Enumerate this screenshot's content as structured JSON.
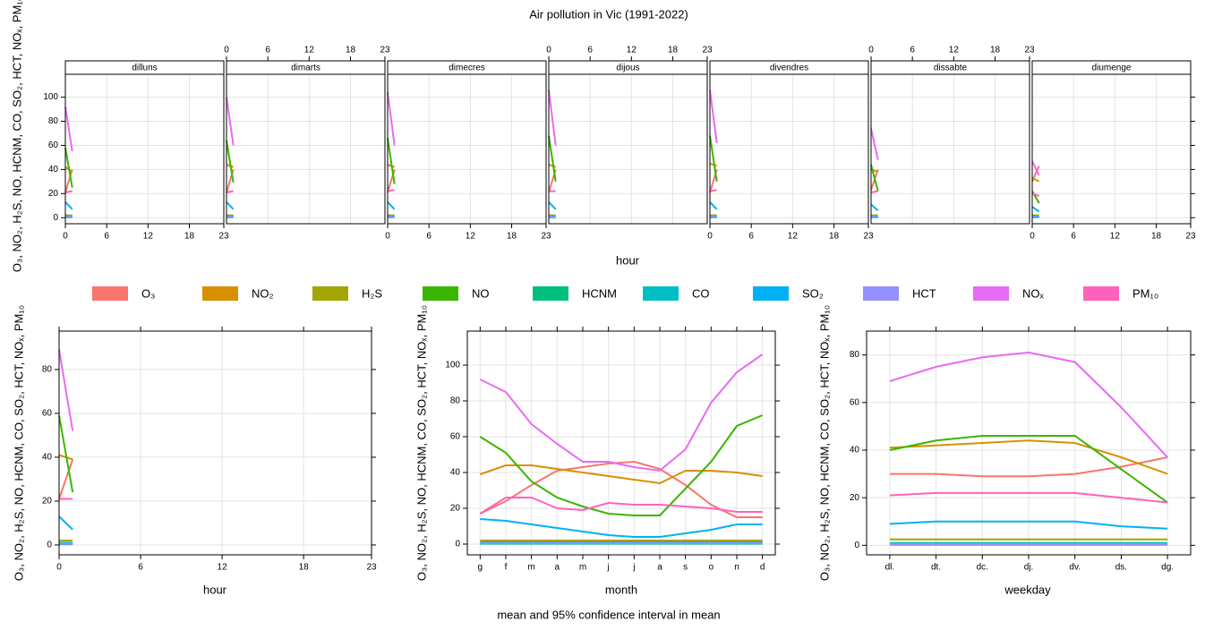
{
  "title": "Air pollution in Vic (1991-2022)",
  "ylabel": "O₃, NO₂, H₂S, NO, HCNM, CO, SO₂, HCT, NOₓ, PM₁₀",
  "footnote": "mean and 95% confidence interval in mean",
  "legend": [
    {
      "name": "O₃",
      "color": "#F8766D"
    },
    {
      "name": "NO₂",
      "color": "#D89000"
    },
    {
      "name": "H₂S",
      "color": "#A3A500"
    },
    {
      "name": "NO",
      "color": "#39B600"
    },
    {
      "name": "HCNM",
      "color": "#00BF7D"
    },
    {
      "name": "CO",
      "color": "#00BFC4"
    },
    {
      "name": "SO₂",
      "color": "#00B0F6"
    },
    {
      "name": "HCT",
      "color": "#9590FF"
    },
    {
      "name": "NOₓ",
      "color": "#E76BF3"
    },
    {
      "name": "PM₁₀",
      "color": "#FF62BC"
    }
  ],
  "chart_data": [
    {
      "type": "line",
      "xlabel": "hour",
      "x": [
        0,
        1
      ],
      "xlim": [
        0,
        23
      ],
      "xticks": [
        0,
        6,
        12,
        18,
        23
      ],
      "ylim": [
        -5,
        119
      ],
      "yticks": [
        0,
        20,
        40,
        60,
        80,
        100
      ],
      "grid": true,
      "facets": [
        {
          "title": "dilluns",
          "series": [
            {
              "values": [
                21,
                40
              ]
            },
            {
              "values": [
                42,
                38
              ]
            },
            {
              "values": [
                2,
                2
              ]
            },
            {
              "values": [
                58,
                25
              ]
            },
            {
              "values": [
                0.3,
                0.3
              ]
            },
            {
              "values": [
                1,
                1
              ]
            },
            {
              "values": [
                13,
                7
              ]
            },
            {
              "values": [
                0.5,
                0.5
              ]
            },
            {
              "values": [
                92,
                55
              ]
            },
            {
              "values": [
                21,
                22
              ]
            }
          ]
        },
        {
          "title": "dimarts",
          "series": [
            {
              "values": [
                21,
                40
              ]
            },
            {
              "values": [
                44,
                42
              ]
            },
            {
              "values": [
                2,
                2
              ]
            },
            {
              "values": [
                64,
                29
              ]
            },
            {
              "values": [
                0.3,
                0.3
              ]
            },
            {
              "values": [
                1,
                1
              ]
            },
            {
              "values": [
                13,
                7
              ]
            },
            {
              "values": [
                0.5,
                0.5
              ]
            },
            {
              "values": [
                100,
                60
              ]
            },
            {
              "values": [
                21,
                22
              ]
            }
          ]
        },
        {
          "title": "dimecres",
          "series": [
            {
              "values": [
                21,
                40
              ]
            },
            {
              "values": [
                44,
                42
              ]
            },
            {
              "values": [
                2,
                2
              ]
            },
            {
              "values": [
                66,
                28
              ]
            },
            {
              "values": [
                0.3,
                0.3
              ]
            },
            {
              "values": [
                1,
                1
              ]
            },
            {
              "values": [
                13,
                7
              ]
            },
            {
              "values": [
                0.5,
                0.5
              ]
            },
            {
              "values": [
                104,
                60
              ]
            },
            {
              "values": [
                22,
                23
              ]
            }
          ]
        },
        {
          "title": "dijous",
          "series": [
            {
              "values": [
                21,
                40
              ]
            },
            {
              "values": [
                44,
                42
              ]
            },
            {
              "values": [
                2,
                2
              ]
            },
            {
              "values": [
                68,
                30
              ]
            },
            {
              "values": [
                0.3,
                0.3
              ]
            },
            {
              "values": [
                1,
                1
              ]
            },
            {
              "values": [
                13,
                7
              ]
            },
            {
              "values": [
                0.5,
                0.5
              ]
            },
            {
              "values": [
                106,
                60
              ]
            },
            {
              "values": [
                22,
                22
              ]
            }
          ]
        },
        {
          "title": "divendres",
          "series": [
            {
              "values": [
                21,
                40
              ]
            },
            {
              "values": [
                45,
                43
              ]
            },
            {
              "values": [
                2,
                2
              ]
            },
            {
              "values": [
                68,
                30
              ]
            },
            {
              "values": [
                0.3,
                0.3
              ]
            },
            {
              "values": [
                1,
                1
              ]
            },
            {
              "values": [
                13,
                7
              ]
            },
            {
              "values": [
                0.5,
                0.5
              ]
            },
            {
              "values": [
                106,
                62
              ]
            },
            {
              "values": [
                22,
                23
              ]
            }
          ]
        },
        {
          "title": "dissabte",
          "series": [
            {
              "values": [
                23,
                40
              ]
            },
            {
              "values": [
                40,
                38
              ]
            },
            {
              "values": [
                2,
                2
              ]
            },
            {
              "values": [
                44,
                22
              ]
            },
            {
              "values": [
                0.3,
                0.3
              ]
            },
            {
              "values": [
                1,
                1
              ]
            },
            {
              "values": [
                11,
                6
              ]
            },
            {
              "values": [
                0.5,
                0.5
              ]
            },
            {
              "values": [
                74,
                48
              ]
            },
            {
              "values": [
                21,
                22
              ]
            }
          ]
        },
        {
          "title": "diumenge",
          "series": [
            {
              "values": [
                30,
                43
              ]
            },
            {
              "values": [
                33,
                30
              ]
            },
            {
              "values": [
                2,
                2
              ]
            },
            {
              "values": [
                22,
                12
              ]
            },
            {
              "values": [
                0.3,
                0.3
              ]
            },
            {
              "values": [
                1,
                1
              ]
            },
            {
              "values": [
                9,
                5
              ]
            },
            {
              "values": [
                0.5,
                0.5
              ]
            },
            {
              "values": [
                47,
                35
              ]
            },
            {
              "values": [
                20,
                18
              ]
            }
          ]
        }
      ]
    },
    {
      "type": "line",
      "xlabel": "hour",
      "x": [
        0,
        1
      ],
      "xlim": [
        0,
        23
      ],
      "xticks": [
        0,
        6,
        12,
        18,
        23
      ],
      "ylim": [
        -4.5,
        97.5
      ],
      "yticks": [
        0,
        20,
        40,
        60,
        80
      ],
      "grid": true,
      "series": [
        {
          "values": [
            21,
            39
          ]
        },
        {
          "values": [
            41,
            39
          ]
        },
        {
          "values": [
            2,
            2
          ]
        },
        {
          "values": [
            59,
            24
          ]
        },
        {
          "values": [
            0.3,
            0.3
          ]
        },
        {
          "values": [
            1,
            1
          ]
        },
        {
          "values": [
            13,
            7
          ]
        },
        {
          "values": [
            0.5,
            0.5
          ]
        },
        {
          "values": [
            89,
            52
          ]
        },
        {
          "values": [
            21,
            21
          ]
        }
      ]
    },
    {
      "type": "line",
      "xlabel": "month",
      "categories": [
        "g",
        "f",
        "m",
        "a",
        "m",
        "j",
        "j",
        "a",
        "s",
        "o",
        "n",
        "d"
      ],
      "ylim": [
        -6,
        119
      ],
      "yticks": [
        0,
        20,
        40,
        60,
        80,
        100
      ],
      "grid": true,
      "series": [
        {
          "values": [
            17,
            24,
            33,
            41,
            43,
            45,
            46,
            42,
            33,
            22,
            15,
            15
          ]
        },
        {
          "values": [
            39,
            44,
            44,
            42,
            40,
            38,
            36,
            34,
            41,
            41,
            40,
            38
          ]
        },
        {
          "values": [
            2,
            2,
            2,
            2,
            2,
            2,
            2,
            2,
            2,
            2,
            2,
            2
          ]
        },
        {
          "values": [
            60,
            51,
            35,
            26,
            21,
            17,
            16,
            16,
            31,
            46,
            66,
            72
          ]
        },
        {
          "values": [
            0.2,
            0.2,
            0.2,
            0.2,
            0.2,
            0.2,
            0.2,
            0.2,
            0.2,
            0.2,
            0.2,
            0.2
          ]
        },
        {
          "values": [
            1,
            1,
            1,
            1,
            1,
            1,
            1,
            1,
            1,
            1,
            1,
            1
          ]
        },
        {
          "values": [
            14,
            13,
            11,
            9,
            7,
            5,
            4,
            4,
            6,
            8,
            11,
            11
          ]
        },
        {
          "values": [
            0.5,
            0.5,
            0.5,
            0.5,
            0.5,
            0.5,
            0.5,
            0.5,
            0.5,
            0.5,
            0.5,
            0.5
          ]
        },
        {
          "values": [
            92,
            85,
            67,
            56,
            46,
            46,
            43,
            41,
            53,
            79,
            96,
            106
          ]
        },
        {
          "values": [
            17,
            26,
            26,
            20,
            19,
            23,
            22,
            22,
            21,
            20,
            18,
            18
          ]
        }
      ]
    },
    {
      "type": "line",
      "xlabel": "weekday",
      "categories": [
        "dl.",
        "dt.",
        "dc.",
        "dj.",
        "dv.",
        "ds.",
        "dg."
      ],
      "ylim": [
        -4,
        90
      ],
      "yticks": [
        0,
        20,
        40,
        60,
        80
      ],
      "grid": true,
      "series": [
        {
          "values": [
            30,
            30,
            29,
            29,
            30,
            33,
            37
          ]
        },
        {
          "values": [
            41,
            42,
            43,
            44,
            43,
            37,
            30
          ]
        },
        {
          "values": [
            2.5,
            2.5,
            2.5,
            2.5,
            2.5,
            2.5,
            2.5
          ]
        },
        {
          "values": [
            40,
            44,
            46,
            46,
            46,
            32,
            18
          ]
        },
        {
          "values": [
            0.3,
            0.3,
            0.3,
            0.3,
            0.3,
            0.3,
            0.3
          ]
        },
        {
          "values": [
            1,
            1,
            1,
            1,
            1,
            1,
            1
          ]
        },
        {
          "values": [
            9,
            10,
            10,
            10,
            10,
            8,
            7
          ]
        },
        {
          "values": [
            0.5,
            0.5,
            0.5,
            0.5,
            0.5,
            0.5,
            0.5
          ]
        },
        {
          "values": [
            69,
            75,
            79,
            81,
            77,
            58,
            37
          ]
        },
        {
          "values": [
            21,
            22,
            22,
            22,
            22,
            20,
            18
          ]
        }
      ]
    }
  ]
}
